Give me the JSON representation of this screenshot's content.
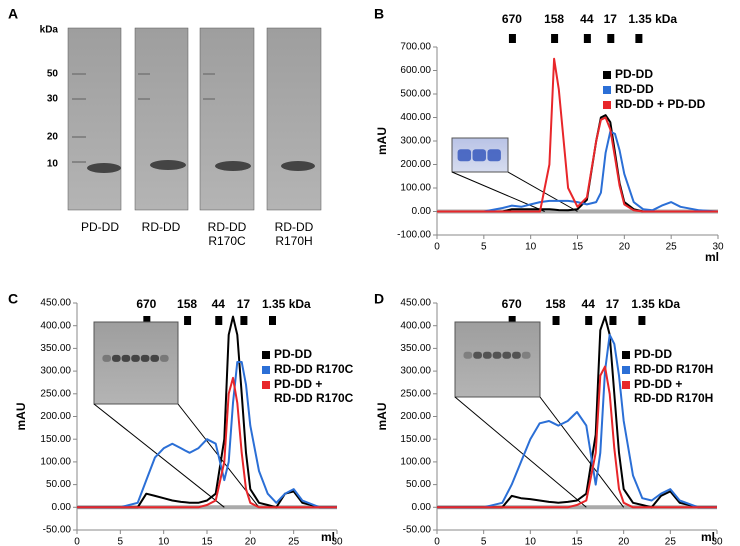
{
  "panel_a": {
    "panel": "A",
    "unit": "kDa",
    "markers": [
      50,
      30,
      20,
      10
    ],
    "lanes": [
      [
        "PD-DD"
      ],
      [
        "RD-DD"
      ],
      [
        "RD-DD",
        "R170C"
      ],
      [
        "RD-DD",
        "R170H"
      ]
    ]
  },
  "chart_data": [
    {
      "type": "line",
      "panel": "B",
      "y_label": "mAU",
      "x_label": "ml",
      "size_markers": [
        {
          "value": 8,
          "label": "670"
        },
        {
          "value": 12.5,
          "label": "158"
        },
        {
          "value": 16,
          "label": "44"
        },
        {
          "value": 18.5,
          "label": "17"
        },
        {
          "value": 21.5,
          "label": "1.35 kDa"
        }
      ],
      "x": [
        0,
        5,
        7,
        8,
        9,
        10,
        11,
        12,
        12.5,
        13,
        14,
        15,
        16,
        17,
        17.5,
        18,
        18.5,
        19,
        19.5,
        20,
        21,
        22,
        23,
        24,
        25,
        26,
        28,
        30
      ],
      "series": [
        {
          "name": "PD-DD",
          "color": "#000000",
          "values": [
            0,
            0,
            0,
            10,
            10,
            10,
            10,
            10,
            8,
            6,
            5,
            10,
            50,
            300,
            400,
            410,
            380,
            250,
            120,
            40,
            10,
            0,
            0,
            0,
            0,
            0,
            0,
            0
          ]
        },
        {
          "name": "RD-DD",
          "color": "#2b6fd6",
          "values": [
            0,
            0,
            15,
            25,
            20,
            30,
            40,
            45,
            45,
            45,
            45,
            40,
            30,
            40,
            80,
            250,
            340,
            330,
            260,
            160,
            40,
            10,
            5,
            25,
            40,
            20,
            5,
            0
          ]
        },
        {
          "name": "RD-DD + PD-DD",
          "color": "#e8262a",
          "values": [
            0,
            0,
            0,
            0,
            0,
            0,
            0,
            200,
            650,
            520,
            100,
            20,
            60,
            300,
            390,
            400,
            350,
            230,
            110,
            30,
            5,
            0,
            0,
            0,
            0,
            0,
            0,
            0
          ]
        }
      ],
      "xlim": [
        0,
        30
      ],
      "xticks": [
        0,
        5,
        10,
        15,
        20,
        25,
        30
      ],
      "ylim": [
        -100,
        700
      ],
      "yticks": [
        {
          "value": -100,
          "label": "-100.00"
        },
        {
          "value": 0,
          "label": "0.00"
        },
        {
          "value": 100,
          "label": "100.00"
        },
        {
          "value": 200,
          "label": "200.00"
        },
        {
          "value": 300,
          "label": "300.00"
        },
        {
          "value": 400,
          "label": "400.00"
        },
        {
          "value": 500,
          "label": "500.00"
        },
        {
          "value": 600,
          "label": "600.00"
        },
        {
          "value": 700,
          "label": "700.00"
        }
      ]
    },
    {
      "type": "line",
      "panel": "C",
      "y_label": "mAU",
      "x_label": "ml",
      "size_markers": [
        {
          "value": 8,
          "label": "670"
        },
        {
          "value": 12.7,
          "label": "158"
        },
        {
          "value": 16.3,
          "label": "44"
        },
        {
          "value": 19.2,
          "label": "17"
        },
        {
          "value": 22.5,
          "label": "1.35 kDa"
        }
      ],
      "x": [
        0,
        5,
        7,
        8,
        9,
        10,
        11,
        12,
        12.5,
        13,
        14,
        15,
        16,
        17,
        17.5,
        18,
        18.5,
        19,
        19.5,
        20,
        21,
        22,
        23,
        24,
        25,
        26,
        28,
        30
      ],
      "series": [
        {
          "name": "PD-DD",
          "color": "#000000",
          "values": [
            0,
            0,
            0,
            30,
            25,
            20,
            15,
            12,
            11,
            10,
            10,
            15,
            30,
            150,
            380,
            420,
            380,
            250,
            120,
            40,
            10,
            5,
            0,
            30,
            35,
            10,
            0,
            0
          ]
        },
        {
          "name": "RD-DD R170C",
          "color": "#2b6fd6",
          "values": [
            0,
            0,
            10,
            60,
            110,
            130,
            140,
            130,
            125,
            120,
            130,
            150,
            140,
            60,
            100,
            230,
            320,
            320,
            270,
            180,
            80,
            30,
            10,
            30,
            40,
            15,
            0,
            0
          ]
        },
        {
          "name": "PD-DD + RD-DD R170C",
          "color": "#e8262a",
          "values": [
            0,
            0,
            0,
            0,
            0,
            0,
            0,
            0,
            0,
            0,
            0,
            5,
            15,
            100,
            250,
            285,
            230,
            120,
            40,
            10,
            0,
            0,
            0,
            0,
            0,
            0,
            0,
            0
          ]
        }
      ],
      "xlim": [
        0,
        30
      ],
      "xticks": [
        0,
        5,
        10,
        15,
        20,
        25,
        30
      ],
      "ylim": [
        -50,
        450
      ],
      "yticks": [
        {
          "value": -50,
          "label": "-50.00"
        },
        {
          "value": 0,
          "label": "0.00"
        },
        {
          "value": 50,
          "label": "50.00"
        },
        {
          "value": 100,
          "label": "100.00"
        },
        {
          "value": 150,
          "label": "150.00"
        },
        {
          "value": 200,
          "label": "200.00"
        },
        {
          "value": 250,
          "label": "250.00"
        },
        {
          "value": 300,
          "label": "300.00"
        },
        {
          "value": 350,
          "label": "350.00"
        },
        {
          "value": 400,
          "label": "400.00"
        },
        {
          "value": 450,
          "label": "450.00"
        }
      ]
    },
    {
      "type": "line",
      "panel": "D",
      "y_label": "mAU",
      "x_label": "ml",
      "size_markers": [
        {
          "value": 8,
          "label": "670"
        },
        {
          "value": 12.7,
          "label": "158"
        },
        {
          "value": 16.2,
          "label": "44"
        },
        {
          "value": 18.8,
          "label": "17"
        },
        {
          "value": 21.9,
          "label": "1.35 kDa"
        }
      ],
      "x": [
        0,
        5,
        7,
        8,
        9,
        10,
        11,
        12,
        12.5,
        13,
        14,
        15,
        16,
        17,
        17.5,
        18,
        18.5,
        19,
        19.5,
        20,
        21,
        22,
        23,
        24,
        25,
        26,
        28,
        30
      ],
      "series": [
        {
          "name": "PD-DD",
          "color": "#000000",
          "values": [
            0,
            0,
            0,
            25,
            20,
            18,
            15,
            12,
            11,
            10,
            12,
            15,
            30,
            160,
            390,
            420,
            380,
            250,
            120,
            40,
            10,
            5,
            0,
            25,
            35,
            10,
            0,
            0
          ]
        },
        {
          "name": "RD-DD R170H",
          "color": "#2b6fd6",
          "values": [
            0,
            0,
            10,
            50,
            100,
            150,
            185,
            190,
            185,
            180,
            190,
            210,
            180,
            50,
            120,
            300,
            380,
            360,
            290,
            190,
            70,
            20,
            15,
            30,
            40,
            15,
            0,
            0
          ]
        },
        {
          "name": "PD-DD + RD-DD R170H",
          "color": "#e8262a",
          "values": [
            0,
            0,
            0,
            0,
            0,
            0,
            0,
            0,
            0,
            0,
            0,
            5,
            15,
            120,
            290,
            310,
            250,
            130,
            40,
            10,
            0,
            0,
            0,
            0,
            0,
            0,
            0,
            0
          ]
        }
      ],
      "xlim": [
        0,
        30
      ],
      "xticks": [
        0,
        5,
        10,
        15,
        20,
        25,
        30
      ],
      "ylim": [
        -50,
        450
      ],
      "yticks": [
        {
          "value": -50,
          "label": "-50.00"
        },
        {
          "value": 0,
          "label": "0.00"
        },
        {
          "value": 50,
          "label": "50.00"
        },
        {
          "value": 100,
          "label": "100.00"
        },
        {
          "value": 150,
          "label": "150.00"
        },
        {
          "value": 200,
          "label": "200.00"
        },
        {
          "value": 250,
          "label": "250.00"
        },
        {
          "value": 300,
          "label": "300.00"
        },
        {
          "value": 350,
          "label": "350.00"
        },
        {
          "value": 400,
          "label": "400.00"
        },
        {
          "value": 450,
          "label": "450.00"
        }
      ]
    }
  ]
}
